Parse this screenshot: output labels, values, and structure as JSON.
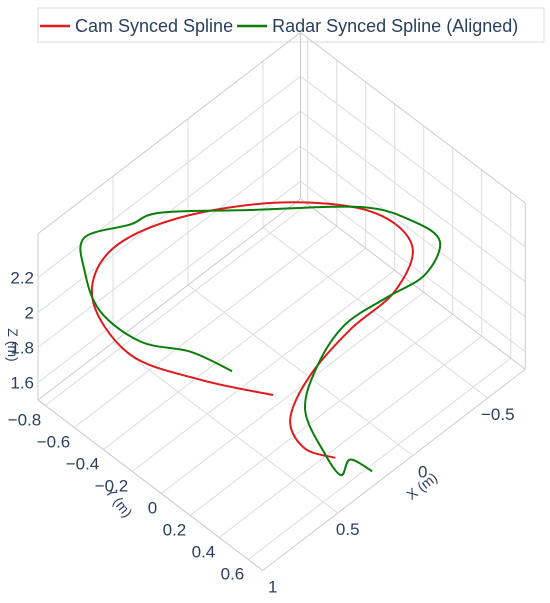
{
  "chart_data": {
    "type": "line3d",
    "xlabel": "X (m)",
    "ylabel": "Y (m)",
    "zlabel": "Z (m)",
    "xlim": [
      1,
      -0.75
    ],
    "ylim": [
      -0.85,
      0.7
    ],
    "zlim": [
      1.5,
      2.45
    ],
    "xticks": [
      1,
      0.5,
      0,
      {
        "value": -0.5,
        "label": "−0.5"
      }
    ],
    "yticks": [
      {
        "value": -0.8,
        "label": "−0.8"
      },
      {
        "value": -0.6,
        "label": "−0.6"
      },
      {
        "value": -0.4,
        "label": "−0.4"
      },
      {
        "value": -0.2,
        "label": "−0.2"
      },
      0,
      0.2,
      0.4,
      0.6
    ],
    "zticks": [
      1.6,
      1.8,
      2,
      2.2
    ],
    "grid": true,
    "legend": "top",
    "series": [
      {
        "name": "Cam Synced Spline",
        "color": "#e31a1c",
        "x": [
          0.39,
          0.64,
          0.84,
          0.8,
          0.6,
          0.27,
          -0.13,
          -0.39,
          -0.42,
          -0.24,
          0.0,
          0.26,
          0.44,
          0.48,
          0.42
        ],
        "y": [
          0.14,
          -0.1,
          -0.38,
          -0.68,
          -0.76,
          -0.63,
          -0.35,
          0.0,
          0.26,
          0.33,
          0.27,
          0.26,
          0.31,
          0.45,
          0.6
        ],
        "z": [
          1.75,
          1.85,
          1.95,
          2.05,
          2.15,
          2.2,
          2.2,
          2.2,
          2.15,
          2.05,
          1.95,
          1.85,
          1.75,
          1.7,
          1.7
        ]
      },
      {
        "name": "Radar Synced Spline (Aligned)",
        "color": "#0a7d0a",
        "x": [
          0.46,
          0.55,
          0.71,
          0.75,
          0.7,
          0.71,
          0.5,
          0.35,
          0.04,
          -0.34,
          -0.45,
          -0.49,
          -0.37,
          -0.18,
          0.0,
          0.19,
          0.35,
          0.4,
          0.4,
          0.34,
          0.28
        ],
        "y": [
          -0.07,
          -0.26,
          -0.44,
          -0.68,
          -0.84,
          -0.83,
          -0.73,
          -0.68,
          -0.38,
          -0.01,
          0.23,
          0.38,
          0.4,
          0.33,
          0.23,
          0.24,
          0.32,
          0.51,
          0.62,
          0.62,
          0.71
        ],
        "z": [
          1.8,
          1.85,
          1.9,
          1.95,
          2.05,
          2.25,
          2.25,
          2.25,
          2.25,
          2.25,
          2.25,
          2.2,
          2.1,
          2.05,
          1.95,
          1.85,
          1.75,
          1.65,
          1.6,
          1.65,
          1.6
        ]
      }
    ]
  }
}
